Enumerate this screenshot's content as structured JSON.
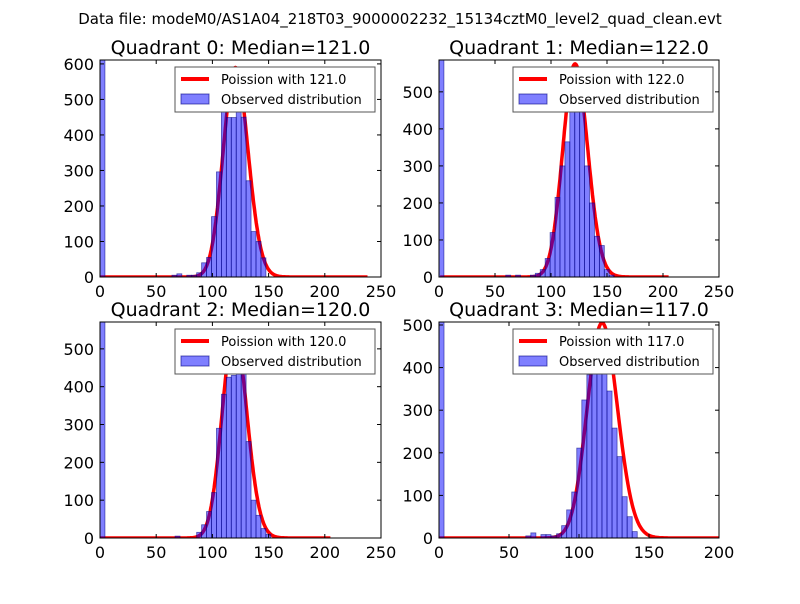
{
  "suptitle": "Data file: modeM0/AS1A04_218T03_9000002232_15134cztM0_level2_quad_clean.evt",
  "colors": {
    "poisson": "#ff0000",
    "bars": "#0000ff",
    "bar_edge": "#000080"
  },
  "chart_data": [
    {
      "type": "bar",
      "title": "Quadrant 0: Median=121.0",
      "xlim": [
        0,
        250
      ],
      "ylim": [
        0,
        611
      ],
      "xticks": [
        "0",
        "50",
        "100",
        "150",
        "200",
        "250"
      ],
      "yticks": [
        "0",
        "100",
        "200",
        "300",
        "400",
        "500",
        "600"
      ],
      "legend": {
        "placement": "top-right",
        "entries": [
          "Poission with 121.0",
          "Observed distribution"
        ]
      },
      "poisson": {
        "lambda": 121.0,
        "scale": 16260,
        "x_range": [
          0,
          238
        ]
      },
      "bin_width": 4.4,
      "bins": [
        [
          0,
          640
        ],
        [
          64,
          5
        ],
        [
          68.4,
          9
        ],
        [
          77.2,
          5
        ],
        [
          81.6,
          5
        ],
        [
          86,
          12
        ],
        [
          90.4,
          40
        ],
        [
          94.8,
          55
        ],
        [
          99.2,
          170
        ],
        [
          103.6,
          296
        ],
        [
          108,
          485
        ],
        [
          112.4,
          449
        ],
        [
          116.8,
          449
        ],
        [
          121.2,
          583
        ],
        [
          125.6,
          450
        ],
        [
          130,
          271
        ],
        [
          134.4,
          128
        ],
        [
          138.8,
          100
        ],
        [
          143.2,
          54
        ]
      ]
    },
    {
      "type": "bar",
      "title": "Quadrant 1: Median=122.0",
      "xlim": [
        0,
        250
      ],
      "ylim": [
        0,
        586
      ],
      "xticks": [
        "0",
        "50",
        "100",
        "150",
        "200",
        "250"
      ],
      "yticks": [
        "0",
        "100",
        "200",
        "300",
        "400",
        "500"
      ],
      "legend": {
        "placement": "top-right",
        "entries": [
          "Poission with 122.0",
          "Observed distribution"
        ]
      },
      "poisson": {
        "lambda": 122.0,
        "scale": 15930,
        "x_range": [
          1,
          205
        ]
      },
      "bin_width": 4.4,
      "bins": [
        [
          0,
          600
        ],
        [
          59.6,
          5
        ],
        [
          68.4,
          5
        ],
        [
          81.6,
          5
        ],
        [
          86,
          10
        ],
        [
          90.4,
          20
        ],
        [
          94.8,
          50
        ],
        [
          99.2,
          120
        ],
        [
          103.6,
          215
        ],
        [
          108,
          300
        ],
        [
          112.4,
          365
        ],
        [
          116.8,
          460
        ],
        [
          121.2,
          540
        ],
        [
          125.6,
          470
        ],
        [
          130,
          300
        ],
        [
          134.4,
          200
        ],
        [
          138.8,
          110
        ],
        [
          143.2,
          85
        ],
        [
          147.6,
          20
        ],
        [
          152,
          5
        ]
      ]
    },
    {
      "type": "bar",
      "title": "Quadrant 2: Median=120.0",
      "xlim": [
        0,
        250
      ],
      "ylim": [
        0,
        571
      ],
      "xticks": [
        "0",
        "50",
        "100",
        "150",
        "200",
        "250"
      ],
      "yticks": [
        "0",
        "100",
        "200",
        "300",
        "400",
        "500"
      ],
      "legend": {
        "placement": "top-right",
        "entries": [
          "Poission with 120.0",
          "Observed distribution"
        ]
      },
      "poisson": {
        "lambda": 120.0,
        "scale": 15050,
        "x_range": [
          0,
          205
        ]
      },
      "bin_width": 4.4,
      "bins": [
        [
          0,
          590
        ],
        [
          66.8,
          5
        ],
        [
          86,
          15
        ],
        [
          90.4,
          35
        ],
        [
          94.8,
          70
        ],
        [
          99.2,
          120
        ],
        [
          103.6,
          290
        ],
        [
          108,
          380
        ],
        [
          112.4,
          425
        ],
        [
          116.8,
          430
        ],
        [
          121.2,
          530
        ],
        [
          125.6,
          450
        ],
        [
          130,
          255
        ],
        [
          134.4,
          100
        ],
        [
          138.8,
          60
        ],
        [
          143.2,
          25
        ],
        [
          147.6,
          10
        ]
      ]
    },
    {
      "type": "bar",
      "title": "Quadrant 3: Median=117.0",
      "xlim": [
        0,
        200
      ],
      "ylim": [
        0,
        507
      ],
      "xticks": [
        "0",
        "50",
        "100",
        "150",
        "200"
      ],
      "yticks": [
        "0",
        "100",
        "200",
        "300",
        "400",
        "500"
      ],
      "legend": {
        "placement": "top-right",
        "entries": [
          "Poission with 117.0",
          "Observed distribution"
        ]
      },
      "poisson": {
        "lambda": 117.0,
        "scale": 13690,
        "x_range": [
          0,
          200
        ]
      },
      "bin_width": 3.6,
      "bins": [
        [
          0,
          520
        ],
        [
          62,
          5
        ],
        [
          65.6,
          12
        ],
        [
          72.8,
          8
        ],
        [
          76.4,
          8
        ],
        [
          80,
          5
        ],
        [
          84,
          10
        ],
        [
          87.6,
          29
        ],
        [
          91.2,
          66
        ],
        [
          94.8,
          108
        ],
        [
          98.4,
          211
        ],
        [
          102,
          324
        ],
        [
          105.6,
          383
        ],
        [
          109.2,
          458
        ],
        [
          112.8,
          461
        ],
        [
          116.4,
          453
        ],
        [
          120,
          345
        ],
        [
          123.6,
          258
        ],
        [
          127.2,
          191
        ],
        [
          130.8,
          97
        ],
        [
          134.4,
          50
        ],
        [
          138,
          15
        ]
      ]
    }
  ]
}
